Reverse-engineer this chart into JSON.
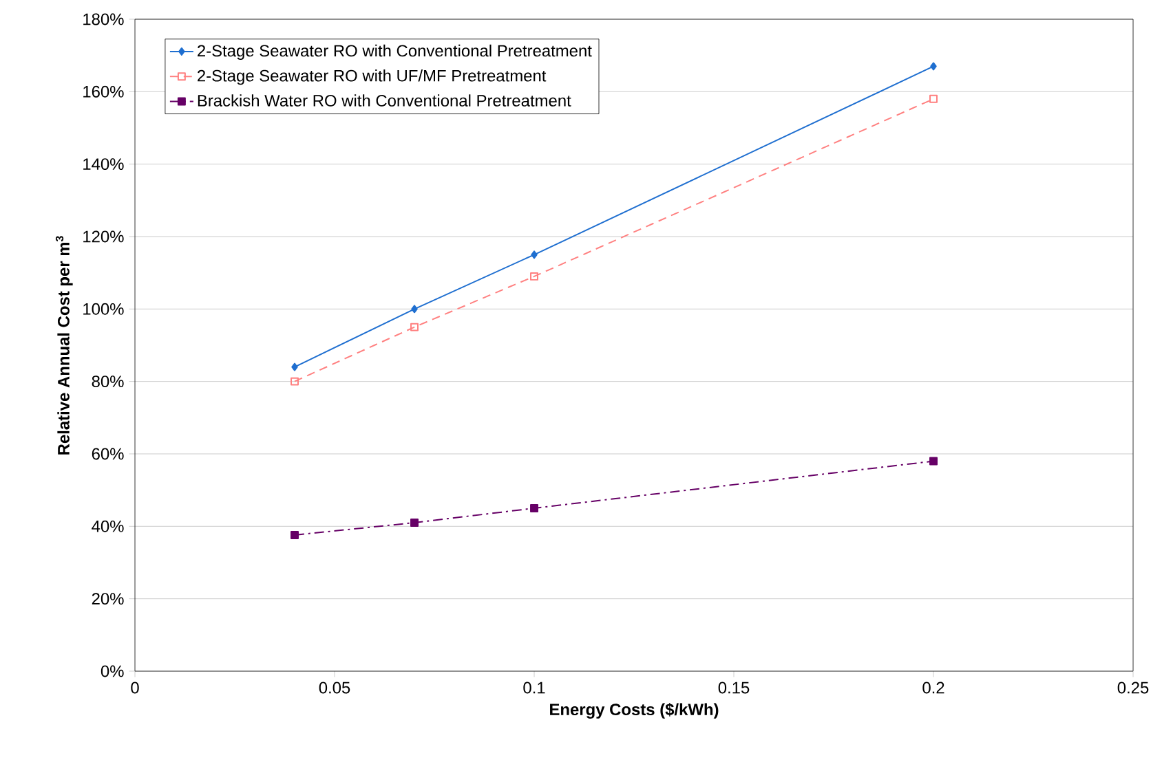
{
  "chart_data": {
    "type": "line",
    "xlabel": "Energy Costs ($/kWh)",
    "ylabel": "Relative Annual Cost per m$^{3}$",
    "x": [
      0.04,
      0.07,
      0.1,
      0.2
    ],
    "series": [
      {
        "name": "2-Stage Seawater RO with Conventional Pretreatment",
        "color": "#1f6fd0",
        "values": [
          84,
          100,
          115,
          167
        ],
        "marker": "diamond",
        "line_style": "solid"
      },
      {
        "name": "2-Stage Seawater RO with UF/MF Pretreatment",
        "color": "#ff8080",
        "values": [
          80,
          95,
          109,
          158
        ],
        "marker": "square_open",
        "line_style": "dashed"
      },
      {
        "name": "Brackish Water RO with Conventional Pretreatment",
        "color": "#660066",
        "values": [
          37.6,
          41,
          45,
          58
        ],
        "marker": "square",
        "line_style": "dashdot"
      }
    ],
    "xlim": [
      0,
      0.25
    ],
    "xticks": [
      0,
      0.05,
      0.1,
      0.15,
      0.2,
      0.25
    ],
    "ylim": [
      0,
      180
    ],
    "yticks": [
      {
        "value": 0,
        "label": "0%"
      },
      {
        "value": 20,
        "label": "20%"
      },
      {
        "value": 40,
        "label": "40%"
      },
      {
        "value": 60,
        "label": "60%"
      },
      {
        "value": 80,
        "label": "80%"
      },
      {
        "value": 100,
        "label": "100%"
      },
      {
        "value": 120,
        "label": "120%"
      },
      {
        "value": 140,
        "label": "140%"
      },
      {
        "value": 160,
        "label": "160%"
      },
      {
        "value": 180,
        "label": "180%"
      }
    ],
    "grid": "y",
    "legend": "top left"
  }
}
